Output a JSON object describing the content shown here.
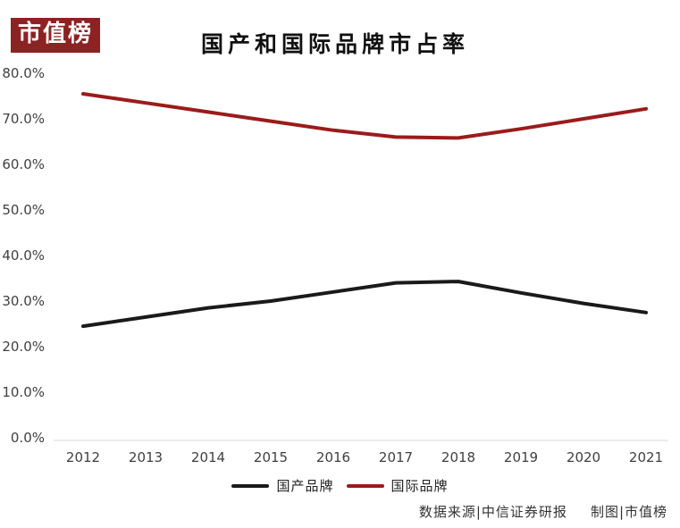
{
  "brand": {
    "logo_text": "市值榜"
  },
  "header": {
    "title": "国产和国际品牌市占率"
  },
  "chart_data": {
    "type": "line",
    "title": "国产和国际品牌市占率",
    "categories": [
      "2012",
      "2013",
      "2014",
      "2015",
      "2016",
      "2017",
      "2018",
      "2019",
      "2020",
      "2021"
    ],
    "series": [
      {
        "name": "国产品牌",
        "color": "#1a1a1a",
        "values": [
          24.5,
          26.5,
          28.5,
          30.0,
          32.0,
          34.0,
          34.3,
          31.8,
          29.5,
          27.5
        ]
      },
      {
        "name": "国际品牌",
        "color": "#9B1B1B",
        "values": [
          75.5,
          73.5,
          71.5,
          69.5,
          67.5,
          66.0,
          65.8,
          67.8,
          70.0,
          72.2
        ]
      }
    ],
    "ylabel": "",
    "xlabel": "",
    "ylim": [
      0,
      80
    ],
    "ytick_step": 10,
    "ytick_suffix": "%",
    "grid": false,
    "legend_position": "bottom",
    "axis_line_color": "#d9d9d9",
    "tick_label_color": "#404040"
  },
  "footer": {
    "source_label": "数据来源|中信证券研报",
    "credit_label": "制图|市值榜"
  }
}
